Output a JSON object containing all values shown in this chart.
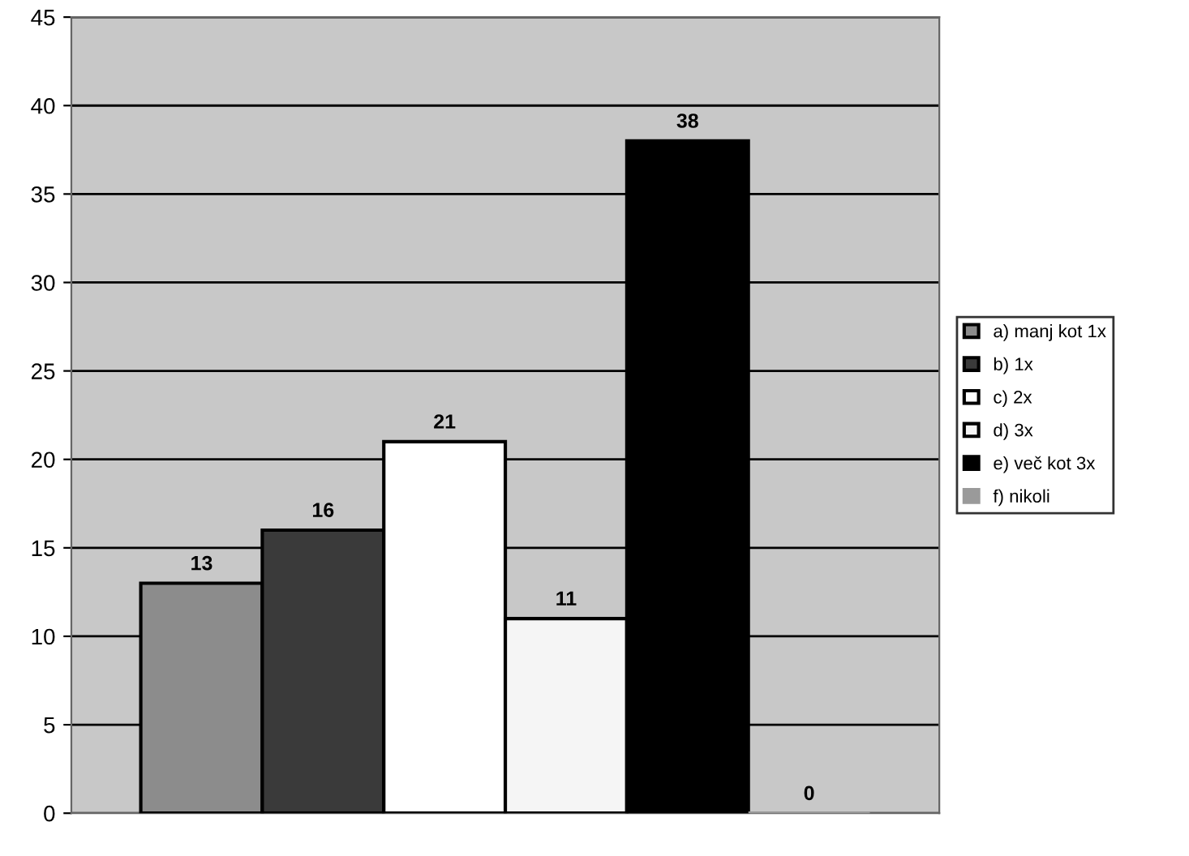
{
  "chart_data": {
    "type": "bar",
    "categories": [
      null
    ],
    "series": [
      {
        "name": "a) manj kot 1x",
        "color": "#8c8c8c",
        "values": [
          13
        ]
      },
      {
        "name": "b) 1x",
        "color": "#3a3a3a",
        "values": [
          16
        ]
      },
      {
        "name": "c) 2x",
        "color": "#ffffff",
        "values": [
          21
        ]
      },
      {
        "name": "d) 3x",
        "color": "#f5f5f5",
        "values": [
          11
        ]
      },
      {
        "name": "e) več kot 3x",
        "color": "#000000",
        "values": [
          38
        ]
      },
      {
        "name": "f) nikoli",
        "color": "#9a9a9a",
        "values": [
          0
        ]
      }
    ],
    "data_labels": true,
    "ylim": [
      0,
      45
    ],
    "yticks": [
      0,
      5,
      10,
      15,
      20,
      25,
      30,
      35,
      40,
      45
    ],
    "grid": "y",
    "legend": "right",
    "tick_labels": "y"
  }
}
